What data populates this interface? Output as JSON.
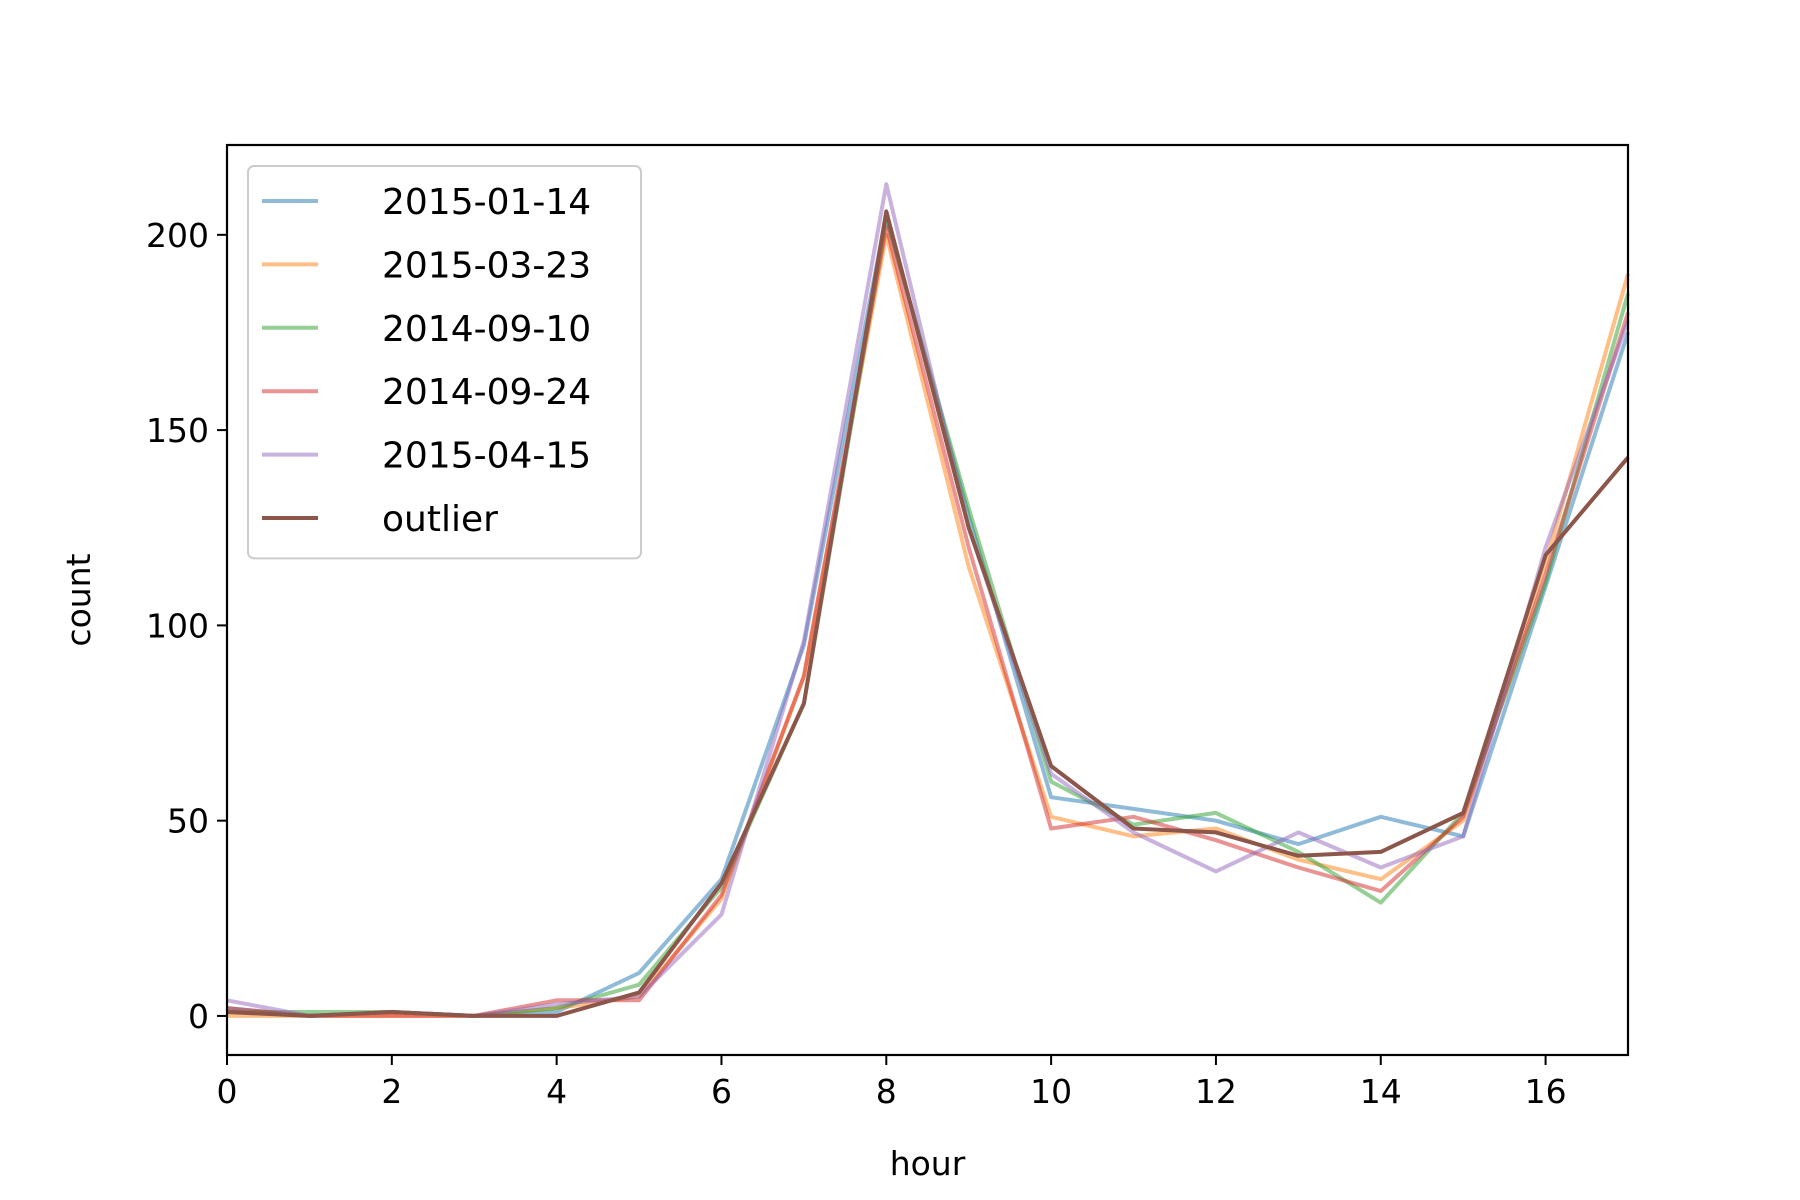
{
  "chart_data": {
    "type": "line",
    "title": "",
    "xlabel": "hour",
    "ylabel": "count",
    "xlim": [
      0,
      17
    ],
    "ylim": [
      -10,
      223
    ],
    "xticks": [
      0,
      2,
      4,
      6,
      8,
      10,
      12,
      14,
      16
    ],
    "yticks": [
      0,
      50,
      100,
      150,
      200
    ],
    "grid": false,
    "legend_position": "top-left",
    "x": [
      0,
      1,
      2,
      3,
      4,
      5,
      6,
      7,
      8,
      9,
      10,
      11,
      12,
      13,
      14,
      15,
      16,
      17
    ],
    "series": [
      {
        "name": "2015-01-14",
        "color": "#1f77b4",
        "opacity": 0.5,
        "values": [
          2,
          0,
          1,
          0,
          1,
          11,
          35,
          95,
          205,
          128,
          56,
          53,
          50,
          44,
          51,
          46,
          110,
          175
        ]
      },
      {
        "name": "2015-03-23",
        "color": "#ff7f0e",
        "opacity": 0.5,
        "values": [
          0,
          0,
          0,
          0,
          2,
          5,
          30,
          87,
          200,
          115,
          51,
          46,
          48,
          40,
          35,
          50,
          116,
          190
        ]
      },
      {
        "name": "2014-09-10",
        "color": "#2ca02c",
        "opacity": 0.5,
        "values": [
          1,
          1,
          1,
          0,
          2,
          8,
          33,
          80,
          204,
          130,
          60,
          49,
          52,
          42,
          29,
          52,
          111,
          185
        ]
      },
      {
        "name": "2014-09-24",
        "color": "#d62728",
        "opacity": 0.5,
        "values": [
          2,
          0,
          0,
          0,
          4,
          4,
          31,
          87,
          202,
          120,
          48,
          51,
          45,
          38,
          32,
          51,
          113,
          180
        ]
      },
      {
        "name": "2015-04-15",
        "color": "#9467bd",
        "opacity": 0.5,
        "values": [
          4,
          0,
          1,
          0,
          3,
          5,
          26,
          96,
          213,
          125,
          62,
          47,
          37,
          47,
          38,
          46,
          120,
          178
        ]
      },
      {
        "name": "outlier",
        "color": "#8c564b",
        "opacity": 1.0,
        "values": [
          1,
          0,
          1,
          0,
          0,
          6,
          34,
          80,
          206,
          125,
          64,
          48,
          47,
          41,
          42,
          52,
          118,
          143
        ]
      }
    ]
  }
}
